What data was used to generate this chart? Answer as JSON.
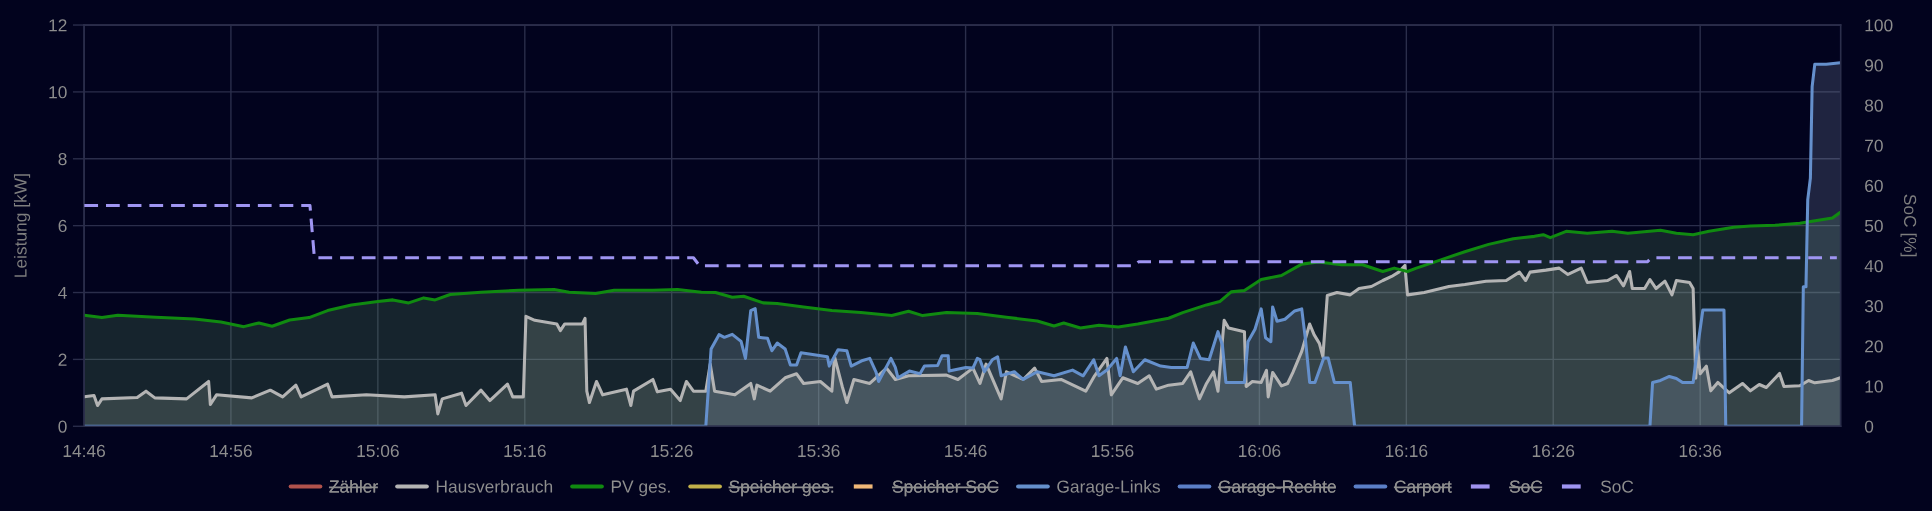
{
  "chart_data": {
    "type": "area",
    "ylabel": "Leistung [kW]",
    "y2label": "SoC [%]",
    "xlim": [
      14.7667,
      16.7593
    ],
    "xticks": [
      {
        "value": 14.7667,
        "label": "14:46"
      },
      {
        "value": 14.9333,
        "label": "14:56"
      },
      {
        "value": 15.1,
        "label": "15:06"
      },
      {
        "value": 15.2667,
        "label": "15:16"
      },
      {
        "value": 15.4333,
        "label": "15:26"
      },
      {
        "value": 15.6,
        "label": "15:36"
      },
      {
        "value": 15.7667,
        "label": "15:46"
      },
      {
        "value": 15.9333,
        "label": "15:56"
      },
      {
        "value": 16.1,
        "label": "16:06"
      },
      {
        "value": 16.2667,
        "label": "16:16"
      },
      {
        "value": 16.4333,
        "label": "16:26"
      },
      {
        "value": 16.6,
        "label": "16:36"
      }
    ],
    "ylim": [
      0,
      12
    ],
    "yticks": [
      0,
      2,
      4,
      6,
      8,
      10,
      12
    ],
    "y2lim": [
      0,
      100
    ],
    "y2ticks": [
      0,
      10,
      20,
      30,
      40,
      50,
      60,
      70,
      80,
      90,
      100
    ],
    "grid": true,
    "legend": "bottom",
    "series": [
      {
        "name": "Zähler",
        "color": "#b0524c"
      },
      {
        "name": "Hausverbrauch",
        "color": "#b4b4b4",
        "x": [
          14.767,
          14.778,
          14.782,
          14.787,
          14.827,
          14.837,
          14.847,
          14.883,
          14.908,
          14.91,
          14.917,
          14.957,
          14.978,
          14.992,
          15.007,
          15.013,
          15.043,
          15.048,
          15.087,
          15.13,
          15.165,
          15.168,
          15.173,
          15.195,
          15.2,
          15.217,
          15.227,
          15.247,
          15.253,
          15.265,
          15.268,
          15.278,
          15.303,
          15.307,
          15.312,
          15.332,
          15.335,
          15.337,
          15.34,
          15.348,
          15.355,
          15.382,
          15.387,
          15.39,
          15.412,
          15.417,
          15.432,
          15.443,
          15.45,
          15.458,
          15.472,
          15.477,
          15.482,
          15.505,
          15.523,
          15.527,
          15.53,
          15.545,
          15.562,
          15.575,
          15.583,
          15.602,
          15.615,
          15.618,
          15.627,
          15.632,
          15.64,
          15.658,
          15.677,
          15.687,
          15.702,
          15.745,
          15.758,
          15.775,
          15.783,
          15.79,
          15.807,
          15.813,
          15.832,
          15.845,
          15.853,
          15.875,
          15.903,
          15.913,
          15.927,
          15.932,
          15.945,
          15.962,
          15.975,
          15.983,
          15.997,
          16.013,
          16.022,
          16.032,
          16.04,
          16.048,
          16.053,
          16.06,
          16.065,
          16.083,
          16.085,
          16.092,
          16.102,
          16.108,
          16.11,
          16.115,
          16.125,
          16.132,
          16.138,
          16.148,
          16.157,
          16.162,
          16.168,
          16.172,
          16.177,
          16.188,
          16.203,
          16.213,
          16.227,
          16.24,
          16.25,
          16.258,
          16.265,
          16.268,
          16.287,
          16.315,
          16.333,
          16.357,
          16.38,
          16.395,
          16.402,
          16.407,
          16.425,
          16.44,
          16.45,
          16.465,
          16.472,
          16.495,
          16.505,
          16.513,
          16.52,
          16.523,
          16.537,
          16.543,
          16.55,
          16.56,
          16.568,
          16.573,
          16.588,
          16.592,
          16.595,
          16.597,
          16.6,
          16.607,
          16.612,
          16.62,
          16.628,
          16.633,
          16.648,
          16.657,
          16.667,
          16.675,
          16.69,
          16.695,
          16.713,
          16.723,
          16.73,
          16.75,
          16.759
        ],
        "values": [
          0.88,
          0.92,
          0.62,
          0.82,
          0.86,
          1.05,
          0.85,
          0.82,
          1.34,
          0.65,
          0.94,
          0.85,
          1.08,
          0.88,
          1.23,
          0.88,
          1.26,
          0.88,
          0.94,
          0.88,
          0.94,
          0.37,
          0.82,
          0.99,
          0.62,
          1.08,
          0.77,
          1.26,
          0.88,
          0.88,
          3.29,
          3.17,
          3.06,
          2.86,
          3.06,
          3.06,
          3.23,
          1.05,
          0.71,
          1.34,
          0.94,
          1.11,
          0.62,
          1.05,
          1.4,
          1.03,
          1.11,
          0.77,
          1.34,
          1.05,
          1.05,
          1.86,
          1.05,
          0.94,
          1.28,
          0.82,
          1.23,
          1.05,
          1.45,
          1.57,
          1.28,
          1.34,
          1.05,
          2.08,
          1.17,
          0.71,
          1.4,
          1.28,
          1.74,
          1.4,
          1.51,
          1.53,
          1.4,
          1.74,
          1.28,
          1.86,
          0.82,
          1.63,
          1.4,
          1.74,
          1.34,
          1.4,
          1.05,
          1.51,
          2.03,
          0.94,
          1.45,
          1.28,
          1.51,
          1.11,
          1.23,
          1.28,
          1.63,
          0.82,
          1.28,
          1.63,
          1.05,
          3.17,
          2.94,
          2.83,
          1.19,
          1.34,
          1.31,
          1.67,
          0.88,
          1.61,
          1.21,
          1.28,
          1.61,
          2.24,
          3.06,
          2.74,
          2.48,
          2.08,
          3.91,
          4.0,
          3.93,
          4.12,
          4.18,
          4.36,
          4.48,
          4.61,
          4.81,
          3.93,
          4.0,
          4.18,
          4.24,
          4.34,
          4.36,
          4.61,
          4.36,
          4.61,
          4.67,
          4.73,
          4.54,
          4.73,
          4.3,
          4.36,
          4.51,
          4.2,
          4.63,
          4.12,
          4.12,
          4.39,
          4.12,
          4.34,
          3.93,
          4.36,
          4.3,
          4.12,
          1.44,
          2.34,
          1.57,
          1.8,
          1.06,
          1.31,
          1.12,
          1.0,
          1.28,
          1.06,
          1.25,
          1.16,
          1.58,
          1.19,
          1.21,
          1.37,
          1.3,
          1.37,
          1.45
        ]
      },
      {
        "name": "PV ges.",
        "color": "#108a10",
        "x": [
          14.767,
          14.787,
          14.805,
          14.848,
          14.892,
          14.922,
          14.948,
          14.965,
          14.98,
          15.0,
          15.022,
          15.043,
          15.07,
          15.1,
          15.117,
          15.135,
          15.152,
          15.165,
          15.182,
          15.217,
          15.26,
          15.3,
          15.317,
          15.347,
          15.368,
          15.412,
          15.44,
          15.467,
          15.483,
          15.502,
          15.515,
          15.537,
          15.553,
          15.583,
          15.615,
          15.648,
          15.683,
          15.702,
          15.718,
          15.745,
          15.78,
          15.813,
          15.848,
          15.867,
          15.878,
          15.897,
          15.918,
          15.94,
          15.962,
          15.997,
          16.013,
          16.04,
          16.055,
          16.068,
          16.083,
          16.102,
          16.125,
          16.148,
          16.167,
          16.193,
          16.217,
          16.24,
          16.253,
          16.268,
          16.278,
          16.305,
          16.333,
          16.36,
          16.388,
          16.412,
          16.422,
          16.43,
          16.448,
          16.472,
          16.5,
          16.518,
          16.555,
          16.573,
          16.592,
          16.61,
          16.638,
          16.657,
          16.685,
          16.713,
          16.727,
          16.75,
          16.759
        ],
        "values": [
          3.32,
          3.25,
          3.32,
          3.26,
          3.21,
          3.12,
          2.98,
          3.09,
          2.99,
          3.18,
          3.25,
          3.46,
          3.63,
          3.73,
          3.78,
          3.69,
          3.84,
          3.78,
          3.94,
          4.01,
          4.07,
          4.09,
          4.01,
          3.97,
          4.07,
          4.07,
          4.09,
          4.01,
          4.0,
          3.86,
          3.89,
          3.69,
          3.67,
          3.57,
          3.46,
          3.4,
          3.31,
          3.44,
          3.31,
          3.4,
          3.37,
          3.26,
          3.15,
          3.0,
          3.09,
          2.94,
          3.02,
          2.97,
          3.06,
          3.23,
          3.4,
          3.63,
          3.73,
          4.02,
          4.06,
          4.39,
          4.51,
          4.85,
          4.91,
          4.83,
          4.83,
          4.63,
          4.73,
          4.63,
          4.73,
          4.97,
          5.22,
          5.44,
          5.61,
          5.68,
          5.73,
          5.64,
          5.83,
          5.77,
          5.83,
          5.77,
          5.86,
          5.77,
          5.73,
          5.83,
          5.95,
          5.99,
          6.01,
          6.07,
          6.13,
          6.23,
          6.4
        ]
      },
      {
        "name": "Speicher ges.",
        "color": "#c2b04a"
      },
      {
        "name": "Speicher SoC",
        "color": "#f0b878",
        "line_style": "dashed"
      },
      {
        "name": "Garage-Links",
        "color": "#6590cc",
        "x": [
          14.767,
          15.472,
          15.478,
          15.487,
          15.493,
          15.502,
          15.512,
          15.517,
          15.523,
          15.528,
          15.532,
          15.542,
          15.547,
          15.553,
          15.562,
          15.568,
          15.575,
          15.58,
          15.61,
          15.612,
          15.622,
          15.632,
          15.637,
          15.65,
          15.658,
          15.665,
          15.668,
          15.682,
          15.687,
          15.69,
          15.703,
          15.715,
          15.72,
          15.735,
          15.74,
          15.747,
          15.748,
          15.767,
          15.775,
          15.78,
          15.783,
          15.788,
          15.797,
          15.803,
          15.807,
          15.822,
          15.832,
          15.848,
          15.867,
          15.888,
          15.9,
          15.912,
          15.918,
          15.927,
          15.938,
          15.942,
          15.948,
          15.957,
          15.97,
          15.988,
          16.0,
          16.018,
          16.025,
          16.033,
          16.043,
          16.053,
          16.058,
          16.062,
          16.083,
          16.087,
          16.095,
          16.102,
          16.107,
          16.113,
          16.115,
          16.12,
          16.129,
          16.14,
          16.148,
          16.152,
          16.157,
          16.163,
          16.173,
          16.178,
          16.185,
          16.203,
          16.208,
          16.543,
          16.546,
          16.555,
          16.565,
          16.573,
          16.58,
          16.592,
          16.597,
          16.603,
          16.627,
          16.629,
          16.715,
          16.717,
          16.72,
          16.722,
          16.725,
          16.727,
          16.73,
          16.743,
          16.759
        ],
        "values": [
          0,
          0,
          2.31,
          2.74,
          2.66,
          2.75,
          2.54,
          2.03,
          3.46,
          3.52,
          2.66,
          2.63,
          2.26,
          2.49,
          2.31,
          1.83,
          1.83,
          2.2,
          2.08,
          1.8,
          2.29,
          2.26,
          1.8,
          1.97,
          2.03,
          1.63,
          1.34,
          2.03,
          1.76,
          1.45,
          1.65,
          1.57,
          1.8,
          1.82,
          2.11,
          2.11,
          1.65,
          1.76,
          1.74,
          2.03,
          1.99,
          1.63,
          1.99,
          2.08,
          1.51,
          1.63,
          1.4,
          1.63,
          1.51,
          1.68,
          1.51,
          1.99,
          1.51,
          1.68,
          2.03,
          1.51,
          2.37,
          1.63,
          1.99,
          1.8,
          1.76,
          1.76,
          2.49,
          2.03,
          1.99,
          2.83,
          2.43,
          1.31,
          1.31,
          2.53,
          2.9,
          3.51,
          2.65,
          2.53,
          3.57,
          3.14,
          3.2,
          3.45,
          3.51,
          2.65,
          1.31,
          1.31,
          2.04,
          2.04,
          1.31,
          1.31,
          0,
          0,
          1.31,
          1.37,
          1.49,
          1.43,
          1.31,
          1.31,
          2.35,
          3.48,
          3.48,
          0,
          0,
          4.17,
          4.17,
          6.77,
          7.42,
          10.16,
          10.83,
          10.83,
          10.87
        ]
      },
      {
        "name": "Garage-Rechte",
        "color": "#5b7fc7"
      },
      {
        "name": "Carport",
        "color": "#5b7fc7"
      },
      {
        "name": "SoC",
        "color": "#a093f0",
        "line_style": "dashed"
      },
      {
        "name": "SoC",
        "type": "line",
        "color": "#9f95f2",
        "line_style": "dashed",
        "axis": "y2",
        "x": [
          14.767,
          15.023,
          15.028,
          15.458,
          15.465,
          15.958,
          15.963,
          16.54,
          16.545,
          16.755
        ],
        "values": [
          55,
          55,
          42,
          42,
          40,
          40,
          41,
          41,
          42,
          42
        ]
      }
    ]
  }
}
